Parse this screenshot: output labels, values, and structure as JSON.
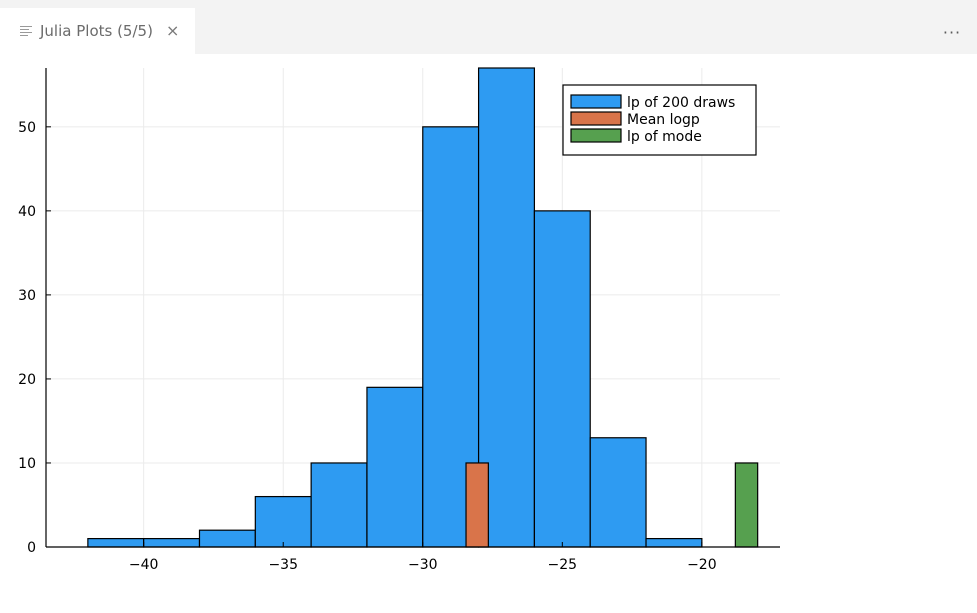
{
  "tab": {
    "title": "Julia Plots (5/5)",
    "icon": "preview-lines-icon",
    "close": "×"
  },
  "toolbar": {
    "more_label": "···"
  },
  "chart_data": {
    "type": "bar",
    "title": "",
    "xlabel": "",
    "ylabel": "",
    "xlim": [
      -43.5,
      -17.2
    ],
    "ylim": [
      0,
      57
    ],
    "x_ticks": [
      -40,
      -35,
      -30,
      -25,
      -20
    ],
    "x_tick_labels": [
      "−40",
      "−35",
      "−30",
      "−25",
      "−20"
    ],
    "y_ticks": [
      0,
      10,
      20,
      30,
      40,
      50
    ],
    "y_tick_labels": [
      "0",
      "10",
      "20",
      "30",
      "40",
      "50"
    ],
    "grid": true,
    "legend_position": "top-right",
    "series": [
      {
        "name": "lp of 200 draws",
        "color": "#2e9bf2",
        "bins": [
          {
            "x0": -42,
            "x1": -40,
            "value": 1
          },
          {
            "x0": -40,
            "x1": -38,
            "value": 1
          },
          {
            "x0": -38,
            "x1": -36,
            "value": 2
          },
          {
            "x0": -36,
            "x1": -34,
            "value": 6
          },
          {
            "x0": -34,
            "x1": -32,
            "value": 10
          },
          {
            "x0": -32,
            "x1": -30,
            "value": 19
          },
          {
            "x0": -30,
            "x1": -28,
            "value": 50
          },
          {
            "x0": -28,
            "x1": -26,
            "value": 57
          },
          {
            "x0": -26,
            "x1": -24,
            "value": 40
          },
          {
            "x0": -24,
            "x1": -22,
            "value": 13
          },
          {
            "x0": -22,
            "x1": -20,
            "value": 1
          }
        ]
      },
      {
        "name": "Mean logp",
        "color": "#d9744a",
        "bins": [
          {
            "x0": -28.45,
            "x1": -27.65,
            "value": 10
          }
        ]
      },
      {
        "name": "lp of mode",
        "color": "#56a04f",
        "bins": [
          {
            "x0": -18.8,
            "x1": -18.0,
            "value": 10
          }
        ]
      }
    ]
  }
}
